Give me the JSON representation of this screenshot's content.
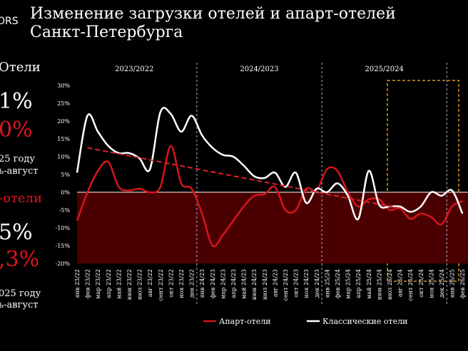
{
  "logo": "ORS",
  "title_lines": [
    "Изменение загрузки отелей и апарт-отелей",
    "Санкт-Петербурга"
  ],
  "sidebar": {
    "texts": [
      {
        "text": "Отели",
        "color": "#ffffff",
        "size": 18
      },
      {
        "text": "1%",
        "color": "#ffffff",
        "size": 30
      },
      {
        "text": "0%",
        "color": "#e0141e",
        "size": 30
      },
      {
        "text": "25 году",
        "color": "#ffffff",
        "size": 13
      },
      {
        "text": "ь-август",
        "color": "#ffffff",
        "size": 13
      },
      {
        "text": "-отели",
        "color": "#e0141e",
        "size": 18
      },
      {
        "text": "5%",
        "color": "#ffffff",
        "size": 30
      },
      {
        "text": ",3%",
        "color": "#e0141e",
        "size": 30
      },
      {
        "text": "025 году",
        "color": "#ffffff",
        "size": 13
      },
      {
        "text": "ь-август",
        "color": "#ffffff",
        "size": 13
      }
    ]
  },
  "chart_data": {
    "type": "line",
    "periods": [
      "2023/2022",
      "2024/2023",
      "2025/2024"
    ],
    "categories": [
      "янв 23/22",
      "фев 23/22",
      "мар 23/22",
      "апр 23/22",
      "май 23/22",
      "июн 23/22",
      "июл 23/22",
      "авг 23/22",
      "сент 23/22",
      "окт 23/22",
      "ноя 23/22",
      "дек 23/22",
      "янв 24/23",
      "фев 24/23",
      "мар 24/23",
      "апр 24/23",
      "май 24/23",
      "июн 24/23",
      "июл 24/23",
      "авг 24/23",
      "сент 24/23",
      "окт 24/23",
      "ноя 24/23",
      "дек 24/23",
      "янв 25/24",
      "фев 25/24",
      "мар 25/24",
      "апр 25/24",
      "май 25/24",
      "июн 25/24",
      "июл 25/24",
      "авг 25/24",
      "сент 25/24",
      "окт 25/24",
      "ноя 25/24",
      "дек 25/24",
      "янв 26/25",
      "фев 26/25"
    ],
    "series": [
      {
        "name": "Апарт-отели",
        "color": "#d7141c",
        "values": [
          -8,
          0,
          6,
          8.5,
          1.5,
          0.5,
          1,
          0,
          1.5,
          13,
          2.5,
          1,
          -6,
          -15,
          -12,
          -8,
          -4,
          -1,
          -0.5,
          1.5,
          -5,
          -5,
          1,
          0.5,
          6.5,
          6,
          0,
          -4,
          -2,
          -2,
          -5,
          -4.5,
          -7.5,
          -6,
          -7,
          -9,
          -4,
          -2.5
        ]
      },
      {
        "name": "Классические отели",
        "color": "#ffffff",
        "values": [
          5.5,
          21.5,
          17,
          13,
          11,
          11,
          9.5,
          6.5,
          22.5,
          22,
          17,
          21.5,
          16,
          12.5,
          10.5,
          10,
          7.5,
          4.5,
          4,
          5.5,
          1.5,
          5.5,
          -3,
          1,
          0,
          2.5,
          -1,
          -7.5,
          6,
          -3.5,
          -4,
          -4,
          -5.5,
          -4,
          0,
          -1,
          0.5,
          -6
        ]
      }
    ],
    "trend": {
      "x": [
        1,
        31
      ],
      "values": [
        12.5,
        -4.5
      ],
      "color": "#e0202a"
    },
    "ylim": [
      -20,
      30
    ],
    "yticks": [
      {
        "value": -20,
        "label": "-20%"
      },
      {
        "value": -15,
        "label": "-15%"
      },
      {
        "value": -10,
        "label": "-10%"
      },
      {
        "value": -5,
        "label": "-5%"
      },
      {
        "value": 0,
        "label": "0%"
      },
      {
        "value": 5,
        "label": "5%"
      },
      {
        "value": 10,
        "label": "10%"
      },
      {
        "value": 15,
        "label": "15%"
      },
      {
        "value": 20,
        "label": "20%"
      },
      {
        "value": 25,
        "label": "25%"
      },
      {
        "value": 30,
        "label": "30%"
      }
    ]
  }
}
